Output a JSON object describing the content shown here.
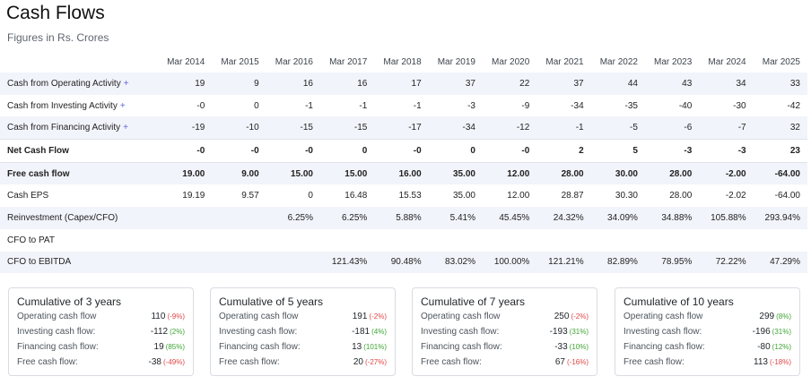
{
  "header": {
    "title": "Cash Flows",
    "subtitle": "Figures in Rs. Crores"
  },
  "columns": [
    "Mar 2014",
    "Mar 2015",
    "Mar 2016",
    "Mar 2017",
    "Mar 2018",
    "Mar 2019",
    "Mar 2020",
    "Mar 2021",
    "Mar 2022",
    "Mar 2023",
    "Mar 2024",
    "Mar 2025"
  ],
  "rows": [
    {
      "label": "Cash from Operating Activity",
      "expand": "+",
      "values": [
        "19",
        "9",
        "16",
        "16",
        "17",
        "37",
        "22",
        "37",
        "44",
        "43",
        "34",
        "33"
      ]
    },
    {
      "label": "Cash from Investing Activity",
      "expand": "+",
      "values": [
        "-0",
        "0",
        "-1",
        "-1",
        "-1",
        "-3",
        "-9",
        "-34",
        "-35",
        "-40",
        "-30",
        "-42"
      ]
    },
    {
      "label": "Cash from Financing Activity",
      "expand": "+",
      "values": [
        "-19",
        "-10",
        "-15",
        "-15",
        "-17",
        "-34",
        "-12",
        "-1",
        "-5",
        "-6",
        "-7",
        "32"
      ]
    },
    {
      "label": "Net Cash Flow",
      "values": [
        "-0",
        "-0",
        "-0",
        "0",
        "-0",
        "0",
        "-0",
        "2",
        "5",
        "-3",
        "-3",
        "23"
      ]
    },
    {
      "label": "Free cash flow",
      "values": [
        "19.00",
        "9.00",
        "15.00",
        "15.00",
        "16.00",
        "35.00",
        "12.00",
        "28.00",
        "30.00",
        "28.00",
        "-2.00",
        "-64.00"
      ]
    },
    {
      "label": "Cash EPS",
      "values": [
        "19.19",
        "9.57",
        "0",
        "16.48",
        "15.53",
        "35.00",
        "12.00",
        "28.87",
        "30.30",
        "28.00",
        "-2.02",
        "-64.00"
      ]
    },
    {
      "label": "Reinvestment (Capex/CFO)",
      "values": [
        "",
        "",
        "6.25%",
        "6.25%",
        "5.88%",
        "5.41%",
        "45.45%",
        "24.32%",
        "34.09%",
        "34.88%",
        "105.88%",
        "293.94%"
      ]
    },
    {
      "label": "CFO to PAT",
      "values": [
        "",
        "",
        "",
        "",
        "",
        "",
        "",
        "",
        "",
        "",
        "",
        ""
      ]
    },
    {
      "label": "CFO to EBITDA",
      "values": [
        "",
        "",
        "",
        "121.43%",
        "90.48%",
        "83.02%",
        "100.00%",
        "121.21%",
        "82.89%",
        "78.95%",
        "72.22%",
        "47.29%"
      ]
    }
  ],
  "cards": [
    {
      "title": "Cumulative of 3 years",
      "rows": [
        {
          "label": "Operating cash flow",
          "value": "110",
          "pct": "(-9%)",
          "sign": "neg"
        },
        {
          "label": "Investing cash flow:",
          "value": "-112",
          "pct": "(2%)",
          "sign": "pos"
        },
        {
          "label": "Financing cash flow:",
          "value": "19",
          "pct": "(85%)",
          "sign": "pos"
        },
        {
          "label": "Free cash flow:",
          "value": "-38",
          "pct": "(-49%)",
          "sign": "neg"
        }
      ]
    },
    {
      "title": "Cumulative of 5 years",
      "rows": [
        {
          "label": "Operating cash flow",
          "value": "191",
          "pct": "(-2%)",
          "sign": "neg"
        },
        {
          "label": "Investing cash flow:",
          "value": "-181",
          "pct": "(4%)",
          "sign": "pos"
        },
        {
          "label": "Financing cash flow:",
          "value": "13",
          "pct": "(101%)",
          "sign": "pos"
        },
        {
          "label": "Free cash flow:",
          "value": "20",
          "pct": "(-27%)",
          "sign": "neg"
        }
      ]
    },
    {
      "title": "Cumulative of 7 years",
      "rows": [
        {
          "label": "Operating cash flow",
          "value": "250",
          "pct": "(-2%)",
          "sign": "neg"
        },
        {
          "label": "Investing cash flow:",
          "value": "-193",
          "pct": "(31%)",
          "sign": "pos"
        },
        {
          "label": "Financing cash flow:",
          "value": "-33",
          "pct": "(10%)",
          "sign": "pos"
        },
        {
          "label": "Free cash flow:",
          "value": "67",
          "pct": "(-16%)",
          "sign": "neg"
        }
      ]
    },
    {
      "title": "Cumulative of 10 years",
      "rows": [
        {
          "label": "Operating cash flow",
          "value": "299",
          "pct": "(8%)",
          "sign": "pos"
        },
        {
          "label": "Investing cash flow:",
          "value": "-196",
          "pct": "(31%)",
          "sign": "pos"
        },
        {
          "label": "Financing cash flow:",
          "value": "-80",
          "pct": "(12%)",
          "sign": "pos"
        },
        {
          "label": "Free cash flow:",
          "value": "113",
          "pct": "(-18%)",
          "sign": "neg"
        }
      ]
    }
  ]
}
